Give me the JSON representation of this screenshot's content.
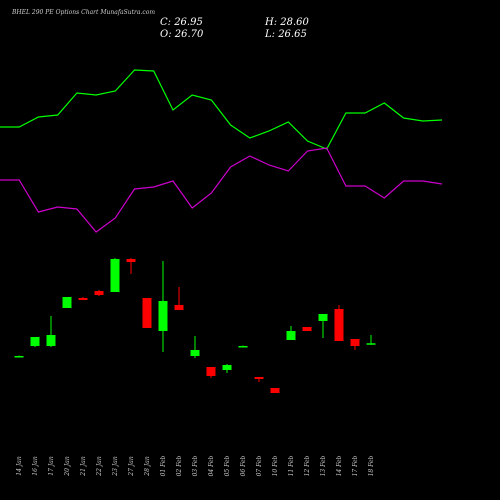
{
  "chart_data": [
    {
      "type": "candlestick",
      "title": "BHEL 290 PE Options Chart MunafaSutra.com",
      "annotations": [
        "C: 26.95",
        "H: 28.60",
        "O: 26.70",
        "L: 26.65"
      ],
      "categories": [
        "14 Jan",
        "16 Jan",
        "17 Jan",
        "20 Jan",
        "21 Jan",
        "22 Jan",
        "23 Jan",
        "27 Jan",
        "28 Jan",
        "01 Feb",
        "02 Feb",
        "03 Feb",
        "04 Feb",
        "05 Feb",
        "06 Feb",
        "07 Feb",
        "10 Feb",
        "11 Feb",
        "12 Feb",
        "13 Feb",
        "14 Feb",
        "17 Feb",
        "18 Feb"
      ],
      "open": [
        24.4,
        26.4,
        26.4,
        34.0,
        36.0,
        37.4,
        37.2,
        43.8,
        36.0,
        29.4,
        34.6,
        24.4,
        22.2,
        21.6,
        26.3,
        20.2,
        18.0,
        27.6,
        30.2,
        31.4,
        33.8,
        27.8,
        26.7
      ],
      "high": [
        24.5,
        28.2,
        32.4,
        36.2,
        36.2,
        37.6,
        44.0,
        44.0,
        36.0,
        43.4,
        38.2,
        28.4,
        22.2,
        22.8,
        26.5,
        20.2,
        18.0,
        30.4,
        30.2,
        32.8,
        34.6,
        27.8,
        28.6
      ],
      "low": [
        24.3,
        26.2,
        26.2,
        34.0,
        35.6,
        36.4,
        37.2,
        40.8,
        30.0,
        25.2,
        33.6,
        24.0,
        20.0,
        21.0,
        26.2,
        19.2,
        17.0,
        27.6,
        29.4,
        28.0,
        27.4,
        25.6,
        26.65
      ],
      "close": [
        24.4,
        28.2,
        28.6,
        36.2,
        35.6,
        36.6,
        43.8,
        43.2,
        30.0,
        35.4,
        33.6,
        25.6,
        20.4,
        22.6,
        26.4,
        19.8,
        17.0,
        29.4,
        29.4,
        32.8,
        27.4,
        26.4,
        26.95
      ],
      "up_color": "#00ff00",
      "down_color": "#ff0000",
      "ylim": [
        14,
        50
      ]
    },
    {
      "type": "line",
      "series": [
        {
          "color": "#00ff00",
          "values": [
            123,
            123,
            133,
            135,
            157,
            155,
            159,
            180,
            179,
            140,
            155,
            150,
            125,
            112,
            119,
            128,
            109,
            101,
            137,
            137,
            147,
            132,
            129,
            130
          ]
        },
        {
          "color": "#cc00cc",
          "values": [
            70,
            70,
            38,
            43,
            41,
            18,
            32,
            61,
            63,
            69,
            42,
            57,
            83,
            94,
            85,
            79,
            99,
            102,
            64,
            64,
            52,
            69,
            69,
            66
          ]
        }
      ],
      "ylim": [
        0,
        200
      ]
    }
  ]
}
